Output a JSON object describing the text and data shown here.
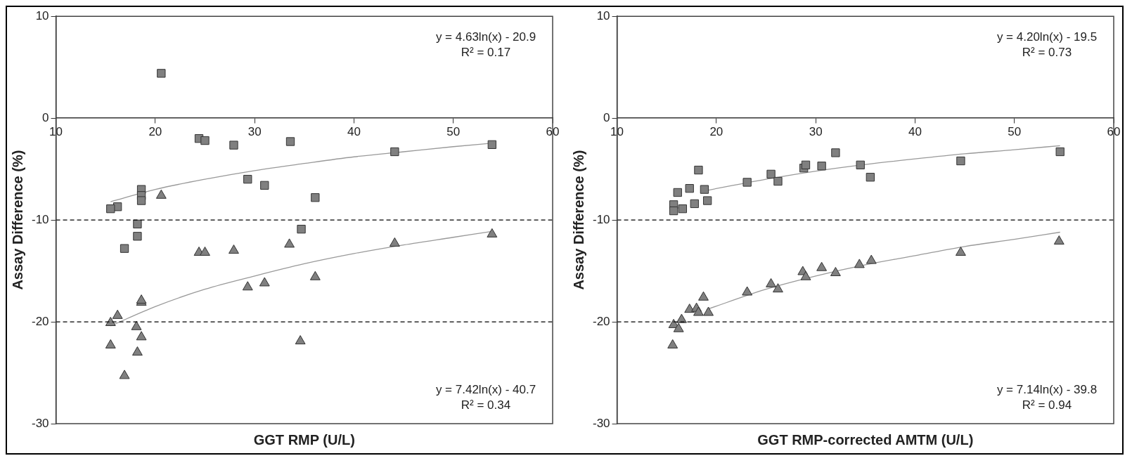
{
  "chart_data": [
    {
      "type": "scatter",
      "xlabel": "GGT RMP (U/L)",
      "ylabel": "Assay Difference (%)",
      "xlim": [
        10,
        60
      ],
      "xticks": [
        10,
        20,
        30,
        40,
        50,
        60
      ],
      "ylim": [
        -30,
        10
      ],
      "yticks": [
        -30,
        -20,
        -10,
        0,
        10
      ],
      "series": [
        {
          "color": "#808080",
          "marker": "square",
          "x": [
            20.6,
            24.4,
            25.0,
            27.9,
            33.6,
            44.1,
            53.9,
            29.3,
            31.0,
            36.1,
            18.6,
            18.6,
            18.6,
            16.2,
            15.5,
            18.2,
            18.2,
            16.9,
            34.7
          ],
          "values": [
            4.4,
            -2.0,
            -2.2,
            -2.65,
            -2.3,
            -3.3,
            -2.6,
            -6.0,
            -6.6,
            -7.8,
            -7.0,
            -7.6,
            -8.1,
            -8.7,
            -8.9,
            -10.4,
            -11.6,
            -12.8,
            -10.9
          ]
        },
        {
          "color": "#808080",
          "marker": "triangle",
          "x": [
            20.6,
            24.4,
            25.0,
            27.9,
            33.5,
            44.1,
            53.9,
            29.3,
            31.0,
            36.1,
            18.6,
            18.6,
            16.2,
            15.5,
            18.1,
            18.6,
            15.5,
            18.2,
            16.9,
            34.6
          ],
          "values": [
            -7.6,
            -13.2,
            -13.2,
            -13.0,
            -12.4,
            -12.3,
            -11.4,
            -16.6,
            -16.2,
            -15.6,
            -18.1,
            -17.9,
            -19.4,
            -20.1,
            -20.5,
            -21.5,
            -22.3,
            -23.0,
            -25.3,
            -21.9
          ]
        },
        {
          "type": "line",
          "color": "#999999",
          "marker": "none",
          "x": [
            15.5,
            20,
            25,
            30,
            35,
            40,
            45,
            50,
            54
          ],
          "values": [
            -8.2,
            -7.0,
            -6.0,
            -5.15,
            -4.45,
            -3.8,
            -3.3,
            -2.8,
            -2.45
          ]
        },
        {
          "type": "line",
          "color": "#999999",
          "marker": "none",
          "x": [
            15.5,
            20,
            25,
            30,
            35,
            40,
            45,
            50,
            54
          ],
          "values": [
            -20.4,
            -18.5,
            -16.8,
            -15.5,
            -14.3,
            -13.3,
            -12.45,
            -11.7,
            -11.1
          ]
        }
      ],
      "ref_lines": [
        {
          "axis": "y",
          "value": -10,
          "color": "#000000",
          "line_style": "dashed"
        },
        {
          "axis": "y",
          "value": -20,
          "color": "#000000",
          "line_style": "dashed"
        }
      ],
      "annotations": [
        "y = 4.63ln(x) - 20.9",
        "R² = 0.17",
        "y = 7.42ln(x) - 40.7",
        "R² = 0.34"
      ]
    },
    {
      "type": "scatter",
      "xlabel": "GGT RMP-corrected AMTM (U/L)",
      "ylabel": "Assay Difference (%)",
      "xlim": [
        10,
        60
      ],
      "xticks": [
        10,
        20,
        30,
        40,
        50,
        60
      ],
      "ylim": [
        -30,
        10
      ],
      "yticks": [
        -30,
        -20,
        -10,
        0,
        10
      ],
      "series": [
        {
          "color": "#808080",
          "marker": "square",
          "x": [
            15.7,
            15.7,
            16.6,
            16.1,
            17.3,
            17.8,
            18.2,
            18.8,
            19.1,
            23.1,
            25.5,
            26.2,
            28.8,
            29.0,
            30.6,
            32.0,
            34.5,
            35.5,
            44.6,
            54.6
          ],
          "values": [
            -8.5,
            -9.1,
            -8.9,
            -7.3,
            -6.9,
            -8.4,
            -5.1,
            -7.0,
            -8.1,
            -6.3,
            -5.5,
            -6.2,
            -4.9,
            -4.6,
            -4.7,
            -3.4,
            -4.6,
            -5.8,
            -4.2,
            -3.3
          ]
        },
        {
          "color": "#808080",
          "marker": "triangle",
          "x": [
            15.6,
            15.7,
            16.2,
            16.5,
            17.3,
            18.0,
            18.2,
            18.7,
            19.2,
            23.1,
            25.5,
            26.2,
            28.7,
            29.0,
            30.6,
            32.0,
            34.4,
            35.6,
            44.6,
            54.5
          ],
          "values": [
            -22.3,
            -20.3,
            -20.7,
            -19.8,
            -18.8,
            -18.7,
            -19.1,
            -17.6,
            -19.1,
            -17.1,
            -16.3,
            -16.8,
            -15.1,
            -15.6,
            -14.7,
            -15.2,
            -14.4,
            -14.0,
            -13.2,
            -12.1
          ]
        },
        {
          "type": "line",
          "color": "#999999",
          "marker": "none",
          "x": [
            19,
            25,
            30,
            35,
            40,
            45,
            50,
            54.6
          ],
          "values": [
            -7.1,
            -6.0,
            -5.2,
            -4.55,
            -4.0,
            -3.5,
            -3.1,
            -2.7
          ]
        },
        {
          "type": "line",
          "color": "#999999",
          "marker": "none",
          "x": [
            19,
            25,
            30,
            35,
            40,
            45,
            50,
            54.6
          ],
          "values": [
            -18.8,
            -16.8,
            -15.5,
            -14.4,
            -13.5,
            -12.6,
            -11.9,
            -11.2
          ]
        }
      ],
      "ref_lines": [
        {
          "axis": "y",
          "value": -10,
          "color": "#000000",
          "line_style": "dashed"
        },
        {
          "axis": "y",
          "value": -20,
          "color": "#000000",
          "line_style": "dashed"
        }
      ],
      "annotations": [
        "y = 4.20ln(x) - 19.5",
        "R² = 0.73",
        "y = 7.14ln(x) - 39.8",
        "R² = 0.94"
      ]
    }
  ]
}
